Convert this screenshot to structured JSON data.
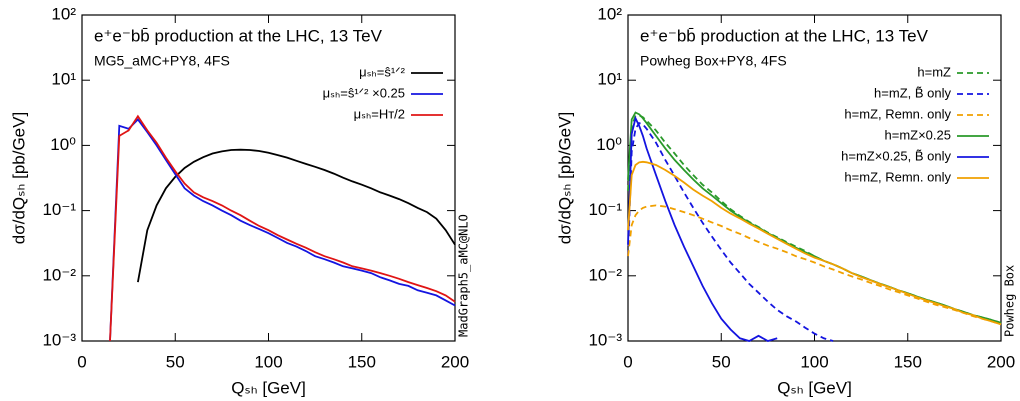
{
  "chart_data": [
    {
      "type": "line",
      "title": "e⁺e⁻bb̄ production at the LHC, 13 TeV",
      "subtitle": "MG5_aMC+PY8, 4FS",
      "side_label": "MadGraph5_aMC@NLO",
      "x_label": "Qₛₕ [GeV]",
      "y_label": "dσ/dQₛₕ [pb/GeV]",
      "log_y": true,
      "legend": "top right",
      "xlim": [
        0,
        200
      ],
      "xticks": [
        0,
        50,
        100,
        150,
        200
      ],
      "ylim": [
        0.001,
        100
      ],
      "yticks": [
        {
          "value": 0.001,
          "label": "10⁻³"
        },
        {
          "value": 0.01,
          "label": "10⁻²"
        },
        {
          "value": 0.1,
          "label": "10⁻¹"
        },
        {
          "value": 1,
          "label": "10⁰"
        },
        {
          "value": 10,
          "label": "10¹"
        },
        {
          "value": 100,
          "label": "10²"
        }
      ],
      "x": [
        0,
        5,
        10,
        15,
        20,
        25,
        30,
        35,
        40,
        45,
        50,
        55,
        60,
        65,
        70,
        75,
        80,
        85,
        90,
        95,
        100,
        105,
        110,
        115,
        120,
        125,
        130,
        135,
        140,
        145,
        150,
        155,
        160,
        165,
        170,
        175,
        180,
        185,
        190,
        195,
        200
      ],
      "series": [
        {
          "name": "μₛₕ=ŝ¹ᐟ²",
          "color": "#000000",
          "dashed": false,
          "values": [
            null,
            null,
            null,
            null,
            null,
            null,
            0.008,
            0.05,
            0.12,
            0.22,
            0.33,
            0.45,
            0.56,
            0.66,
            0.75,
            0.81,
            0.85,
            0.86,
            0.85,
            0.82,
            0.77,
            0.71,
            0.65,
            0.58,
            0.52,
            0.47,
            0.42,
            0.37,
            0.32,
            0.28,
            0.25,
            0.22,
            0.19,
            0.17,
            0.15,
            0.13,
            0.11,
            0.095,
            0.075,
            0.05,
            0.03
          ]
        },
        {
          "name": "μₛₕ=ŝ¹ᐟ² ×0.25",
          "color": "#1414e0",
          "dashed": false,
          "values": [
            null,
            null,
            null,
            0.001,
            2.0,
            1.8,
            2.5,
            1.6,
            1.0,
            0.6,
            0.36,
            0.22,
            0.17,
            0.14,
            0.12,
            0.1,
            0.085,
            0.07,
            0.06,
            0.052,
            0.045,
            0.038,
            0.032,
            0.028,
            0.024,
            0.02,
            0.018,
            0.016,
            0.014,
            0.013,
            0.012,
            0.011,
            0.0095,
            0.0085,
            0.0075,
            0.007,
            0.006,
            0.0055,
            0.005,
            0.0042,
            0.0035
          ]
        },
        {
          "name": "μₛₕ=Hᴛ/2",
          "color": "#e01414",
          "dashed": false,
          "values": [
            null,
            null,
            null,
            0.001,
            1.4,
            1.7,
            2.8,
            1.7,
            1.1,
            0.65,
            0.4,
            0.26,
            0.19,
            0.16,
            0.14,
            0.12,
            0.1,
            0.085,
            0.07,
            0.058,
            0.05,
            0.042,
            0.036,
            0.031,
            0.027,
            0.023,
            0.02,
            0.018,
            0.016,
            0.014,
            0.013,
            0.012,
            0.011,
            0.01,
            0.009,
            0.008,
            0.0072,
            0.0065,
            0.0058,
            0.005,
            0.004
          ]
        }
      ]
    },
    {
      "type": "line",
      "title": "e⁺e⁻bb̄ production at the LHC, 13 TeV",
      "subtitle": "Powheg Box+PY8, 4FS",
      "side_label": "Powheg Box",
      "x_label": "Qₛₕ [GeV]",
      "y_label": "dσ/dQₛₕ [pb/GeV]",
      "log_y": true,
      "legend": "top right",
      "xlim": [
        0,
        200
      ],
      "xticks": [
        0,
        50,
        100,
        150,
        200
      ],
      "ylim": [
        0.001,
        100
      ],
      "yticks": [
        {
          "value": 0.001,
          "label": "10⁻³"
        },
        {
          "value": 0.01,
          "label": "10⁻²"
        },
        {
          "value": 0.1,
          "label": "10⁻¹"
        },
        {
          "value": 1,
          "label": "10⁰"
        },
        {
          "value": 10,
          "label": "10¹"
        },
        {
          "value": 100,
          "label": "10²"
        }
      ],
      "x": [
        0,
        2,
        4,
        6,
        8,
        10,
        15,
        20,
        25,
        30,
        35,
        40,
        45,
        50,
        55,
        60,
        65,
        70,
        75,
        80,
        85,
        90,
        95,
        100,
        105,
        110,
        115,
        120,
        125,
        130,
        135,
        140,
        145,
        150,
        155,
        160,
        165,
        170,
        175,
        180,
        185,
        190,
        195,
        200
      ],
      "series": [
        {
          "name": "h=mZ",
          "color": "#2a9a2a",
          "dashed": true,
          "values": [
            0.2,
            2.0,
            2.8,
            2.9,
            2.7,
            2.4,
            1.7,
            1.1,
            0.75,
            0.5,
            0.35,
            0.25,
            0.19,
            0.14,
            0.105,
            0.083,
            0.067,
            0.056,
            0.046,
            0.039,
            0.033,
            0.028,
            0.024,
            0.02,
            0.017,
            0.015,
            0.013,
            0.011,
            0.0098,
            0.0086,
            0.0076,
            0.0068,
            0.006,
            0.0054,
            0.0048,
            0.0043,
            0.0039,
            0.0035,
            0.0031,
            0.0028,
            0.0025,
            0.0023,
            0.0021,
            0.0019
          ]
        },
        {
          "name": "h=mZ, B̃ only",
          "color": "#1414e0",
          "dashed": true,
          "values": [
            0.02,
            0.8,
            1.8,
            2.2,
            2.1,
            1.8,
            1.1,
            0.6,
            0.34,
            0.19,
            0.11,
            0.065,
            0.04,
            0.025,
            0.016,
            0.011,
            0.0075,
            0.0055,
            0.004,
            0.003,
            0.0024,
            0.002,
            0.0016,
            0.0013,
            0.0011,
            0.001,
            null,
            null,
            null,
            null,
            null,
            null,
            null,
            null,
            null,
            null,
            null,
            null,
            null,
            null,
            null,
            null,
            null,
            null
          ]
        },
        {
          "name": "h=mZ, Remn. only",
          "color": "#f0a000",
          "dashed": true,
          "values": [
            0.02,
            0.06,
            0.085,
            0.1,
            0.11,
            0.115,
            0.12,
            0.115,
            0.105,
            0.095,
            0.085,
            0.075,
            0.066,
            0.058,
            0.05,
            0.044,
            0.038,
            0.033,
            0.029,
            0.026,
            0.023,
            0.02,
            0.018,
            0.016,
            0.014,
            0.0125,
            0.011,
            0.0098,
            0.0088,
            0.0078,
            0.007,
            0.0062,
            0.0056,
            0.005,
            0.0045,
            0.004,
            0.0036,
            0.0033,
            0.003,
            0.0027,
            0.0024,
            0.0022,
            0.002,
            0.0018
          ]
        },
        {
          "name": "h=mZ×0.25",
          "color": "#2a9a2a",
          "dashed": false,
          "values": [
            0.3,
            2.5,
            3.2,
            3.0,
            2.6,
            2.2,
            1.4,
            0.9,
            0.6,
            0.42,
            0.3,
            0.22,
            0.17,
            0.13,
            0.1,
            0.08,
            0.065,
            0.055,
            0.045,
            0.038,
            0.032,
            0.027,
            0.023,
            0.02,
            0.017,
            0.015,
            0.013,
            0.011,
            0.0098,
            0.0086,
            0.0076,
            0.0068,
            0.006,
            0.0054,
            0.0048,
            0.0043,
            0.0039,
            0.0035,
            0.0031,
            0.0028,
            0.0025,
            0.0023,
            0.0021,
            0.0019
          ]
        },
        {
          "name": "h=mZ×0.25, B̃ only",
          "color": "#1414e0",
          "dashed": false,
          "values": [
            0.03,
            1.5,
            2.6,
            2.0,
            1.4,
            0.9,
            0.35,
            0.14,
            0.06,
            0.028,
            0.014,
            0.007,
            0.0038,
            0.0022,
            0.0015,
            0.0011,
            0.001,
            0.0012,
            0.001,
            0.0011,
            null,
            null,
            null,
            null,
            null,
            null,
            null,
            null,
            null,
            null,
            null,
            null,
            null,
            null,
            null,
            null,
            null,
            null,
            null,
            null,
            null,
            null,
            null,
            null
          ]
        },
        {
          "name": "h=mZ, Remn. only",
          "color": "#f0a000",
          "dashed": false,
          "values": [
            0.05,
            0.35,
            0.5,
            0.55,
            0.56,
            0.55,
            0.5,
            0.42,
            0.34,
            0.27,
            0.21,
            0.17,
            0.14,
            0.11,
            0.09,
            0.076,
            0.063,
            0.053,
            0.044,
            0.037,
            0.031,
            0.026,
            0.022,
            0.019,
            0.017,
            0.015,
            0.013,
            0.011,
            0.0096,
            0.0085,
            0.0075,
            0.0067,
            0.006,
            0.0053,
            0.0047,
            0.0042,
            0.0038,
            0.0034,
            0.0031,
            0.0027,
            0.0025,
            0.0022,
            0.002,
            0.0018
          ]
        }
      ]
    }
  ]
}
